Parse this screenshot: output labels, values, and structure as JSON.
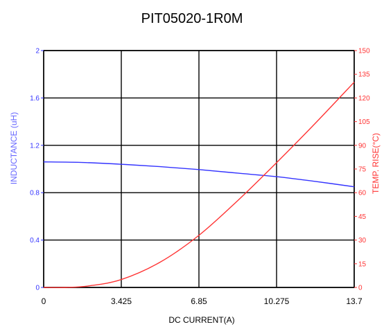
{
  "chart_data": {
    "type": "line",
    "title": "PIT05020-1R0M",
    "xlabel": "DC CURRENT(A)",
    "ylabel_left": "INDUCTANCE (uH)",
    "ylabel_right": "TEMP. RISE(°C)",
    "xlim": [
      0,
      13.7
    ],
    "ylim_left": [
      0,
      2
    ],
    "ylim_right": [
      0,
      150
    ],
    "x_ticks": [
      "0",
      "3.425",
      "6.85",
      "10.275",
      "13.7"
    ],
    "y_left_ticks": [
      "0",
      "0.4",
      "0.8",
      "1.2",
      "1.6",
      "2"
    ],
    "y_right_ticks": [
      "0",
      "15",
      "30",
      "45",
      "60",
      "75",
      "90",
      "105",
      "120",
      "135",
      "150"
    ],
    "grid": true,
    "series": [
      {
        "axis": "left",
        "color": "#3333ff",
        "x": [
          0,
          1.7125,
          3.425,
          5.1375,
          6.85,
          8.5625,
          10.275,
          11.9875,
          13.7
        ],
        "values": [
          1.06,
          1.055,
          1.04,
          1.02,
          0.995,
          0.965,
          0.935,
          0.895,
          0.85
        ]
      },
      {
        "axis": "right",
        "color": "#ff3333",
        "x": [
          0,
          1.0,
          2.0,
          3.425,
          5.1375,
          6.85,
          8.5625,
          10.275,
          11.9875,
          13.7
        ],
        "values": [
          0,
          0,
          1,
          5,
          16,
          33,
          55,
          79,
          104,
          130
        ]
      }
    ]
  }
}
